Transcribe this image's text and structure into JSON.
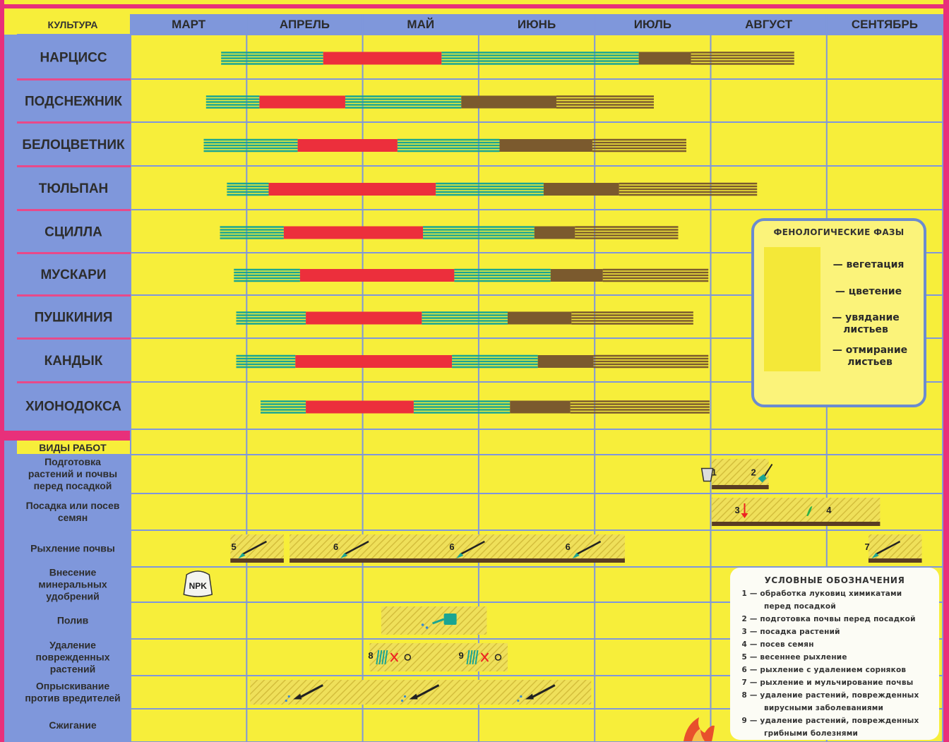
{
  "header": {
    "culture_label": "КУЛЬТУРА",
    "months": [
      "МАРТ",
      "АПРЕЛЬ",
      "МАЙ",
      "ИЮНЬ",
      "ИЮЛЬ",
      "АВГУСТ",
      "СЕНТЯБРЬ"
    ]
  },
  "colors": {
    "background": "#f7ee3a",
    "label_column": "#7f97db",
    "header_row": "#7f97db",
    "grid": "#7f97db",
    "separator": "#e8307a",
    "vegetation": "#1aa592",
    "flowering": "#ec2f3c",
    "wilting": "#7b5a2e",
    "dying": "#7b5a2e"
  },
  "chart_data": {
    "type": "gantt",
    "x_unit": "month",
    "x_range": [
      3,
      10
    ],
    "categories": [
      "НАРЦИСС",
      "ПОДСНЕЖНИК",
      "БЕЛОЦВЕТНИК",
      "ТЮЛЬПАН",
      "СЦИЛЛА",
      "МУСКАРИ",
      "ПУШКИНИЯ",
      "КАНДЫК",
      "ХИОНОДОКСА"
    ],
    "phases": [
      {
        "key": "vegetation",
        "label": "— вегетация"
      },
      {
        "key": "flowering",
        "label": "— цветение"
      },
      {
        "key": "wilting",
        "label": "— увядание листьев"
      },
      {
        "key": "dying",
        "label": "— отмирание листьев"
      }
    ],
    "series": [
      {
        "segments": [
          [
            "vegetation",
            3.78,
            4.66
          ],
          [
            "flowering",
            4.66,
            5.68
          ],
          [
            "vegetation",
            5.68,
            7.38
          ],
          [
            "wilting",
            7.38,
            7.83
          ],
          [
            "dying",
            7.83,
            8.72
          ]
        ]
      },
      {
        "segments": [
          [
            "vegetation",
            3.65,
            4.11
          ],
          [
            "flowering",
            4.11,
            4.85
          ],
          [
            "vegetation",
            4.85,
            5.85
          ],
          [
            "wilting",
            5.85,
            6.67
          ],
          [
            "dying",
            6.67,
            7.51
          ]
        ]
      },
      {
        "segments": [
          [
            "vegetation",
            3.63,
            4.44
          ],
          [
            "flowering",
            4.44,
            5.3
          ],
          [
            "vegetation",
            5.3,
            6.18
          ],
          [
            "wilting",
            6.18,
            6.98
          ],
          [
            "dying",
            6.98,
            7.79
          ]
        ]
      },
      {
        "segments": [
          [
            "vegetation",
            3.83,
            4.19
          ],
          [
            "flowering",
            4.19,
            5.63
          ],
          [
            "vegetation",
            5.63,
            6.56
          ],
          [
            "wilting",
            6.56,
            7.21
          ],
          [
            "dying",
            7.21,
            8.4
          ]
        ]
      },
      {
        "segments": [
          [
            "vegetation",
            3.77,
            4.32
          ],
          [
            "flowering",
            4.32,
            5.52
          ],
          [
            "vegetation",
            5.52,
            6.48
          ],
          [
            "wilting",
            6.48,
            6.83
          ],
          [
            "dying",
            6.83,
            7.72
          ]
        ]
      },
      {
        "segments": [
          [
            "vegetation",
            3.89,
            4.46
          ],
          [
            "flowering",
            4.46,
            5.79
          ],
          [
            "vegetation",
            5.79,
            6.62
          ],
          [
            "wilting",
            6.62,
            7.07
          ],
          [
            "dying",
            7.07,
            7.98
          ]
        ]
      },
      {
        "segments": [
          [
            "vegetation",
            3.91,
            4.51
          ],
          [
            "flowering",
            4.51,
            5.51
          ],
          [
            "vegetation",
            5.51,
            6.25
          ],
          [
            "wilting",
            6.25,
            6.8
          ],
          [
            "dying",
            6.8,
            7.85
          ]
        ]
      },
      {
        "segments": [
          [
            "vegetation",
            3.91,
            4.42
          ],
          [
            "flowering",
            4.42,
            5.77
          ],
          [
            "vegetation",
            5.77,
            6.51
          ],
          [
            "wilting",
            6.51,
            6.99
          ],
          [
            "dying",
            6.99,
            7.98
          ]
        ]
      },
      {
        "segments": [
          [
            "vegetation",
            4.12,
            4.51
          ],
          [
            "flowering",
            4.51,
            5.44
          ],
          [
            "vegetation",
            5.44,
            6.27
          ],
          [
            "wilting",
            6.27,
            6.79
          ],
          [
            "dying",
            6.79,
            7.99
          ]
        ]
      }
    ]
  },
  "works": {
    "title": "ВИДЫ РАБОТ",
    "rows": [
      {
        "label": "Подготовка растений и почвы перед посадкой"
      },
      {
        "label": "Посадка или посев семян"
      },
      {
        "label": "Рыхление почвы"
      },
      {
        "label": "Внесение минеральных удобрений"
      },
      {
        "label": "Полив"
      },
      {
        "label": "Удаление поврежденных растений"
      },
      {
        "label": "Опрыскивание против вредителей"
      },
      {
        "label": "Сжигание"
      }
    ],
    "markers": [
      {
        "row": 0,
        "num": "1",
        "icon": "bucket-icon",
        "x": 8.08
      },
      {
        "row": 0,
        "num": "2",
        "icon": "shovel-icon",
        "x": 8.42
      },
      {
        "row": 1,
        "num": "3",
        "icon": "planting-arrow-icon",
        "x": 8.28
      },
      {
        "row": 1,
        "num": "4",
        "icon": "seedling-icon",
        "x": 9.07
      },
      {
        "row": 2,
        "num": "5",
        "icon": "hoe-icon",
        "x": 3.94
      },
      {
        "row": 2,
        "num": "6",
        "icon": "hoe-icon",
        "x": 4.82
      },
      {
        "row": 2,
        "num": "6",
        "icon": "hoe-icon",
        "x": 5.82
      },
      {
        "row": 2,
        "num": "6",
        "icon": "hoe-icon",
        "x": 6.82
      },
      {
        "row": 2,
        "num": "7",
        "icon": "hoe-icon",
        "x": 9.4
      },
      {
        "row": 5,
        "num": "8",
        "icon": "cut-plant-icon",
        "x": 5.12
      },
      {
        "row": 5,
        "num": "9",
        "icon": "cut-plant-icon",
        "x": 5.9
      }
    ],
    "bands": [
      {
        "row": 0,
        "from": 8.01,
        "to": 8.5
      },
      {
        "row": 1,
        "from": 8.01,
        "to": 9.46
      },
      {
        "row": 2,
        "from": 3.86,
        "to": 4.32
      },
      {
        "row": 2,
        "from": 4.37,
        "to": 7.26
      },
      {
        "row": 2,
        "from": 9.36,
        "to": 9.82
      },
      {
        "row": 4,
        "from": 5.16,
        "to": 6.07
      },
      {
        "row": 5,
        "from": 5.06,
        "to": 6.25
      },
      {
        "row": 6,
        "from": 4.03,
        "to": 6.97
      }
    ],
    "fertilizer_label": "NPK",
    "fertilizer_x": 3.58
  },
  "legend": {
    "title": "ФЕНОЛОГИЧЕСКИЕ ФАЗЫ",
    "items": [
      {
        "key": "vegetation",
        "label": "— вегетация"
      },
      {
        "key": "flowering",
        "label": "— цветение"
      },
      {
        "key": "wilting",
        "label": "— увядание листьев"
      },
      {
        "key": "dying",
        "label": "— отмирание листьев"
      }
    ]
  },
  "key": {
    "title": "УСЛОВНЫЕ ОБОЗНАЧЕНИЯ",
    "items": [
      {
        "num": "1",
        "text": "— обработка луковиц химикатами",
        "cont": "перед посадкой"
      },
      {
        "num": "2",
        "text": "— подготовка почвы перед посадкой",
        "cont": ""
      },
      {
        "num": "3",
        "text": "— посадка растений",
        "cont": ""
      },
      {
        "num": "4",
        "text": "— посев семян",
        "cont": ""
      },
      {
        "num": "5",
        "text": "— весеннее рыхление",
        "cont": ""
      },
      {
        "num": "6",
        "text": "— рыхление с удалением сорняков",
        "cont": ""
      },
      {
        "num": "7",
        "text": "— рыхление и мульчирование почвы",
        "cont": ""
      },
      {
        "num": "8",
        "text": "— удаление растений, поврежденных",
        "cont": "вирусными заболеваниями"
      },
      {
        "num": "9",
        "text": "— удаление растений, поврежденных",
        "cont": "грибными болезнями"
      }
    ]
  }
}
